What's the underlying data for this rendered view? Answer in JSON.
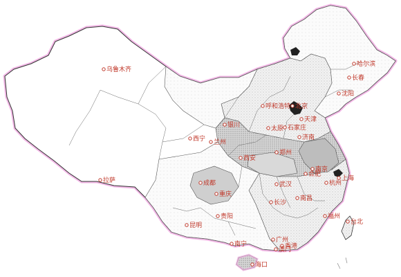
{
  "map": {
    "cities": [
      {
        "id": "urumqi",
        "name": "乌鲁木齐"
      },
      {
        "id": "harbin",
        "name": "哈尔滨"
      },
      {
        "id": "changchun",
        "name": "长春"
      },
      {
        "id": "shenyang",
        "name": "沈阳"
      },
      {
        "id": "hohhot",
        "name": "呼和浩特"
      },
      {
        "id": "beijing",
        "name": "北京"
      },
      {
        "id": "tianjin",
        "name": "天津"
      },
      {
        "id": "yinchuan",
        "name": "银川"
      },
      {
        "id": "taiyuan",
        "name": "太原"
      },
      {
        "id": "shijiazhuang",
        "name": "石家庄"
      },
      {
        "id": "jinan",
        "name": "济南"
      },
      {
        "id": "xining",
        "name": "西宁"
      },
      {
        "id": "lanzhou",
        "name": "兰州"
      },
      {
        "id": "xian",
        "name": "西安"
      },
      {
        "id": "zhengzhou",
        "name": "郑州"
      },
      {
        "id": "nanjing",
        "name": "南京"
      },
      {
        "id": "hefei",
        "name": "合肥"
      },
      {
        "id": "shanghai",
        "name": "上海"
      },
      {
        "id": "hangzhou",
        "name": "杭州"
      },
      {
        "id": "wuhan",
        "name": "武汉"
      },
      {
        "id": "lhasa",
        "name": "拉萨"
      },
      {
        "id": "chengdu",
        "name": "成都"
      },
      {
        "id": "chongqing",
        "name": "重庆"
      },
      {
        "id": "changsha",
        "name": "长沙"
      },
      {
        "id": "nanchang",
        "name": "南昌"
      },
      {
        "id": "guiyang",
        "name": "贵阳"
      },
      {
        "id": "kunming",
        "name": "昆明"
      },
      {
        "id": "fuzhou",
        "name": "福州"
      },
      {
        "id": "taipei",
        "name": "台北"
      },
      {
        "id": "guangzhou",
        "name": "广州"
      },
      {
        "id": "nanning",
        "name": "南宁"
      },
      {
        "id": "hongkong",
        "name": "香港"
      },
      {
        "id": "macau",
        "name": "澳门"
      },
      {
        "id": "haikou",
        "name": "海口"
      }
    ],
    "colors": {
      "border_glow": "#f2b8e6",
      "outline": "#333333",
      "city_red": "#c0392b",
      "region_dark": "#222222"
    }
  }
}
